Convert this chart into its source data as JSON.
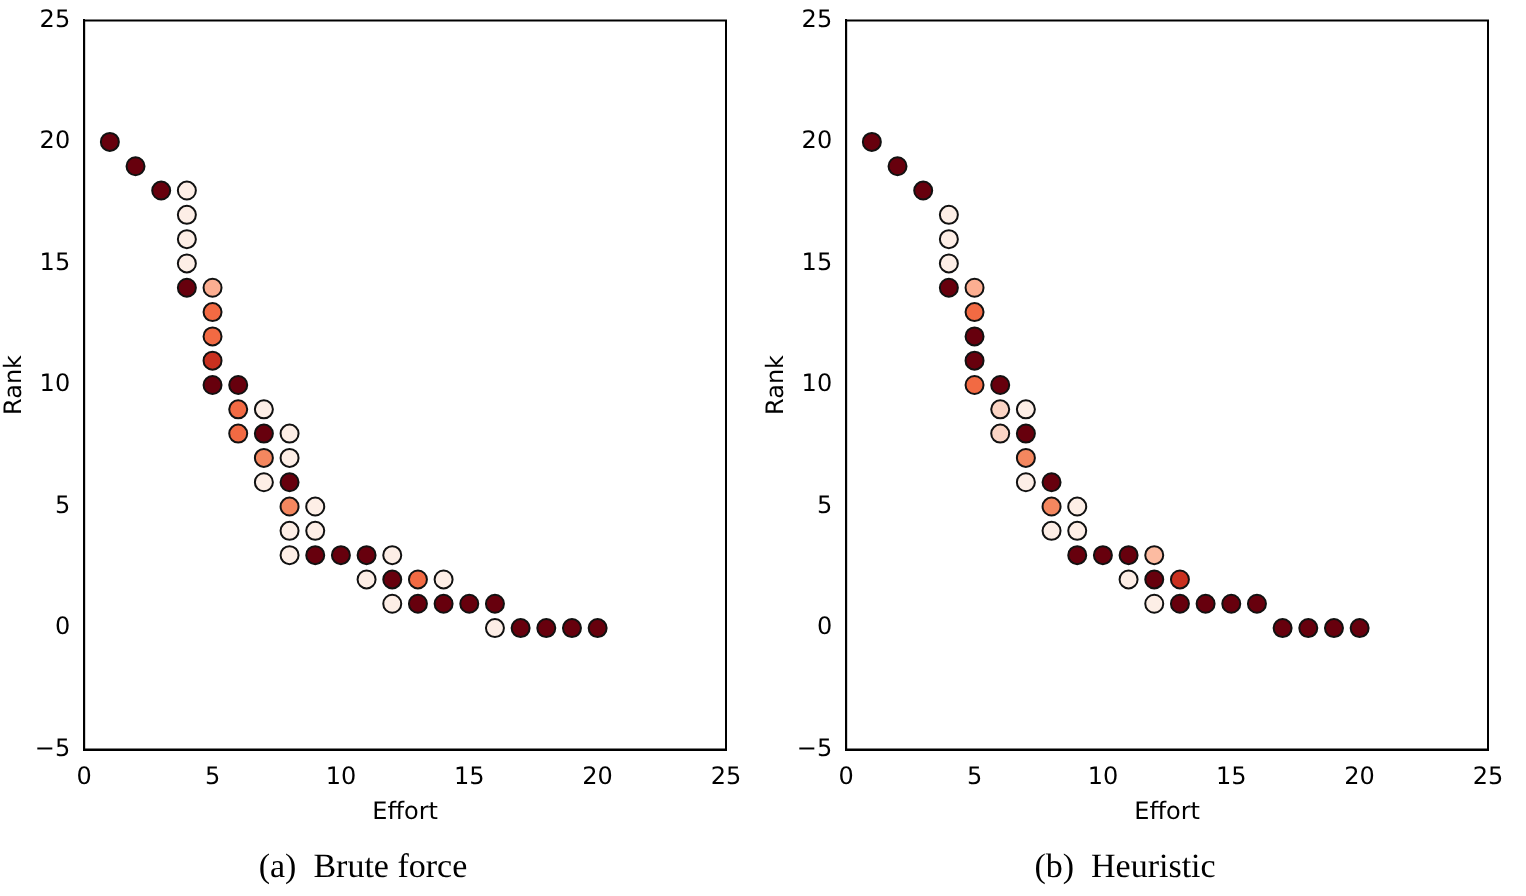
{
  "chart_data": [
    {
      "type": "scatter",
      "title": "(a)  Brute force",
      "xlabel": "Effort",
      "ylabel": "Rank",
      "xlim": [
        0,
        25
      ],
      "xticks": [
        0,
        5,
        10,
        15,
        20,
        25
      ],
      "ylim": [
        -5,
        25
      ],
      "yticks": [
        {
          "value": -5,
          "label": "−5"
        },
        0,
        5,
        10,
        15,
        20,
        25
      ],
      "grid": false,
      "legend": false,
      "marker": "circle",
      "series": [
        {
          "x": [
            1,
            2,
            3,
            4,
            4,
            4,
            4,
            4,
            5,
            5,
            5,
            5,
            5,
            6,
            6,
            6,
            7,
            7,
            7,
            7,
            8,
            8,
            8,
            8,
            8,
            8,
            9,
            9,
            9,
            10,
            11,
            11,
            12,
            12,
            12,
            13,
            13,
            14,
            14,
            15,
            16,
            16,
            17,
            18,
            19,
            20
          ],
          "values": [
            20,
            19,
            18,
            18,
            17,
            16,
            15,
            14,
            14,
            13,
            12,
            11,
            10,
            10,
            9,
            8,
            9,
            8,
            7,
            6,
            8,
            7,
            6,
            5,
            4,
            3,
            5,
            4,
            3,
            3,
            3,
            2,
            3,
            2,
            1,
            2,
            1,
            2,
            1,
            1,
            1,
            0,
            0,
            0,
            0,
            0
          ],
          "colors": [
            "#67000d",
            "#67000d",
            "#67000d",
            "#fdeee6",
            "#fdeee6",
            "#fdeee6",
            "#fdeee6",
            "#67000d",
            "#fcae91",
            "#f26a43",
            "#f26a43",
            "#c9301f",
            "#67000d",
            "#67000d",
            "#f26a43",
            "#f26a43",
            "#fdeee6",
            "#67000d",
            "#f4875f",
            "#fdeee6",
            "#fdeee6",
            "#fdeee6",
            "#67000d",
            "#f4875f",
            "#fdeee6",
            "#fdeee6",
            "#fdeee6",
            "#fdeee6",
            "#67000d",
            "#67000d",
            "#67000d",
            "#fdeee6",
            "#fdeee6",
            "#67000d",
            "#fdeee6",
            "#f26a43",
            "#67000d",
            "#fdeee6",
            "#67000d",
            "#67000d",
            "#67000d",
            "#fdeee6",
            "#67000d",
            "#67000d",
            "#67000d",
            "#67000d"
          ]
        }
      ]
    },
    {
      "type": "scatter",
      "title": "(b)  Heuristic",
      "xlabel": "Effort",
      "ylabel": "Rank",
      "xlim": [
        0,
        25
      ],
      "xticks": [
        0,
        5,
        10,
        15,
        20,
        25
      ],
      "ylim": [
        -5,
        25
      ],
      "yticks": [
        {
          "value": -5,
          "label": "−5"
        },
        0,
        5,
        10,
        15,
        20,
        25
      ],
      "grid": false,
      "legend": false,
      "marker": "circle",
      "series": [
        {
          "x": [
            1,
            2,
            3,
            4,
            4,
            4,
            4,
            5,
            5,
            5,
            5,
            5,
            6,
            6,
            6,
            7,
            7,
            7,
            7,
            8,
            8,
            8,
            9,
            9,
            9,
            10,
            11,
            11,
            12,
            12,
            12,
            13,
            13,
            14,
            15,
            16,
            17,
            18,
            19,
            20
          ],
          "values": [
            20,
            19,
            18,
            17,
            16,
            15,
            14,
            14,
            13,
            12,
            11,
            10,
            10,
            9,
            8,
            9,
            8,
            7,
            6,
            6,
            5,
            4,
            5,
            4,
            3,
            3,
            3,
            2,
            3,
            2,
            1,
            2,
            1,
            1,
            1,
            1,
            0,
            0,
            0,
            0
          ],
          "colors": [
            "#67000d",
            "#67000d",
            "#67000d",
            "#fdeee6",
            "#fdeee6",
            "#fdeee6",
            "#67000d",
            "#fcae91",
            "#f26a43",
            "#67000d",
            "#67000d",
            "#f26a43",
            "#67000d",
            "#fbd5c5",
            "#fbd5c5",
            "#fdeee6",
            "#67000d",
            "#f4875f",
            "#fdeee6",
            "#67000d",
            "#f4875f",
            "#fdeee6",
            "#fdeee6",
            "#fdeee6",
            "#67000d",
            "#67000d",
            "#67000d",
            "#fdeee6",
            "#fcbba1",
            "#67000d",
            "#fdeee6",
            "#c9301f",
            "#67000d",
            "#67000d",
            "#67000d",
            "#67000d",
            "#67000d",
            "#67000d",
            "#67000d",
            "#67000d"
          ]
        }
      ]
    }
  ]
}
